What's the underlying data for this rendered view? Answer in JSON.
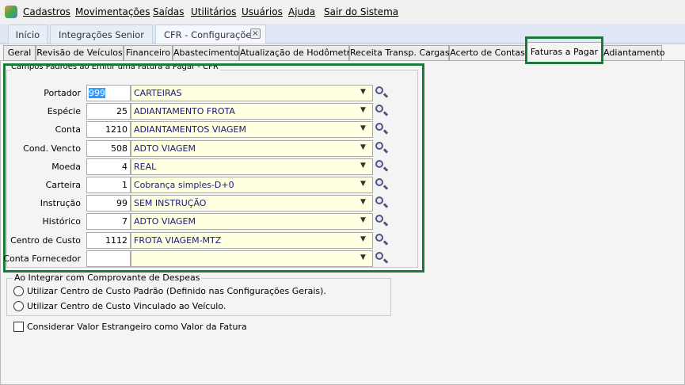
{
  "menu": [
    "Cadastros",
    "Movimentações",
    "Saídas",
    "Utilitários",
    "Usuários",
    "Ajuda",
    "Sair do Sistema"
  ],
  "tabs": [
    "Início",
    "Integrações Senior",
    "CFR - Configurações"
  ],
  "subtabs": [
    "Geral",
    "Revisão de Veículos",
    "Financeiro",
    "Abastecimento",
    "Atualização de Hodômetro",
    "Receita Transp. Cargas",
    "Acerto de Contas",
    "Faturas a Pagar",
    "Adiantamento"
  ],
  "group": {
    "title": "Campos Padrões ao Emitir uma Fatura a Pagar - CFR",
    "fields": [
      {
        "label": "Portador",
        "code": "999",
        "value": "CARTEIRAS"
      },
      {
        "label": "Espécie",
        "code": "25",
        "value": "ADIANTAMENTO FROTA"
      },
      {
        "label": "Conta",
        "code": "1210",
        "value": "ADIANTAMENTOS VIAGEM"
      },
      {
        "label": "Cond. Vencto",
        "code": "508",
        "value": "ADTO VIAGEM"
      },
      {
        "label": "Moeda",
        "code": "4",
        "value": "REAL"
      },
      {
        "label": "Carteira",
        "code": "1",
        "value": "Cobrança simples-D+0"
      },
      {
        "label": "Instrução",
        "code": "99",
        "value": "SEM INSTRUÇÃO"
      },
      {
        "label": "Histórico",
        "code": "7",
        "value": "ADTO VIAGEM"
      },
      {
        "label": "Centro de Custo",
        "code": "1112",
        "value": "FROTA VIAGEM-MTZ"
      },
      {
        "label": "Conta Fornecedor"
      }
    ]
  },
  "despesas": {
    "title": "Ao Integrar com Comprovante de Despeas",
    "options": [
      "Utilizar Centro de Custo Padrão (Definido nas Configurações Gerais).",
      "Utilizar Centro de Custo Vinculado ao Veículo."
    ]
  },
  "checkbox": "Considerar Valor Estrangeiro como Valor da Fatura"
}
